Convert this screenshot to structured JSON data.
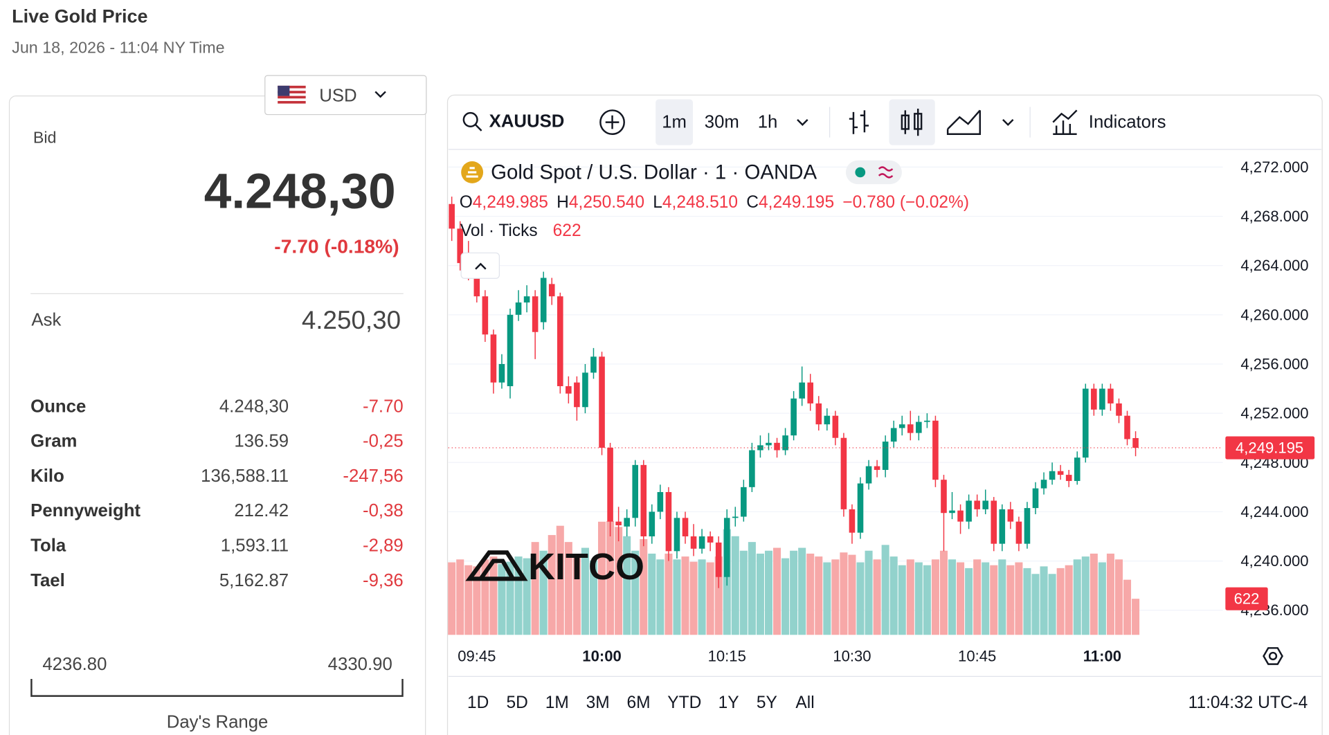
{
  "header": {
    "title": "Live Gold Price",
    "date": "Jun 18, 2026 - 11:04 NY Time"
  },
  "quote": {
    "currency": "USD",
    "bid_label": "Bid",
    "bid": "4.248,30",
    "change": "-7.70 (-0.18%)",
    "ask_label": "Ask",
    "ask": "4.250,30",
    "rows": [
      [
        "Ounce",
        "4.248,30",
        "-7.70"
      ],
      [
        "Gram",
        "136.59",
        "-0,25"
      ],
      [
        "Kilo",
        "136,588.11",
        "-247,56"
      ],
      [
        "Pennyweight",
        "212.42",
        "-0,38"
      ],
      [
        "Tola",
        "1,593.11",
        "-2,89"
      ],
      [
        "Tael",
        "5,162.87",
        "-9,36"
      ]
    ],
    "range_low": "4236.80",
    "range_high": "4330.90",
    "range_label": "Day's Range"
  },
  "toolbar": {
    "symbol": "XAUUSD",
    "intervals": [
      "1m",
      "30m",
      "1h"
    ],
    "indicators": "Indicators"
  },
  "chart_data": {
    "type": "candlestick",
    "title": "Gold Spot / U.S. Dollar · 1 · OANDA",
    "legend": [
      {
        "key": "O",
        "value": "4,249.985"
      },
      {
        "key": "H",
        "value": "4,250.540"
      },
      {
        "key": "L",
        "value": "4,248.510"
      },
      {
        "key": "C",
        "value": "4,249.195"
      }
    ],
    "legend_change": "−0.780 (−0.02%)",
    "volume_label": "Vol · Ticks",
    "watermark": "KITCO",
    "categories": [
      null,
      null,
      null,
      "09:45",
      null,
      null,
      null,
      null,
      null,
      null,
      null,
      null,
      null,
      null,
      null,
      null,
      null,
      null,
      "10:00",
      null,
      null,
      null,
      null,
      null,
      null,
      null,
      null,
      null,
      null,
      null,
      null,
      null,
      null,
      "10:15",
      null,
      null,
      null,
      null,
      null,
      null,
      null,
      null,
      null,
      null,
      null,
      null,
      null,
      null,
      "10:30",
      null,
      null,
      null,
      null,
      null,
      null,
      null,
      null,
      null,
      null,
      null,
      null,
      null,
      null,
      "10:45",
      null,
      null,
      null,
      null,
      null,
      null,
      null,
      null,
      null,
      null,
      null,
      null,
      null,
      null,
      "11:00",
      null,
      null,
      null,
      null
    ],
    "open": [
      4269.0,
      4267.0,
      4264.2,
      4263.5,
      4261.5,
      4258.4,
      4254.5,
      4254.2,
      4260.0,
      4261.0,
      4261.5,
      4259.4,
      4262.5,
      4261.5,
      4254.2,
      4254.5,
      4252.5,
      4255.3,
      4256.6,
      4249.2,
      4243.2,
      4242.8,
      4243.5,
      4247.8,
      4242.0,
      4244.0,
      4245.6,
      4240.8,
      4243.5,
      4242.0,
      4241.0,
      4242.0,
      4241.5,
      4238.7,
      4243.5,
      4243.6,
      4246.0,
      4249.0,
      4249.4,
      4249.6,
      4249.0,
      4250.2,
      4253.2,
      4254.5,
      4252.8,
      4251.1,
      4251.8,
      4250.0,
      4244.2,
      4242.3,
      4246.3,
      4247.7,
      4247.4,
      4249.7,
      4250.8,
      4251.1,
      4250.4,
      4251.3,
      4251.4,
      4246.6,
      4243.9,
      4244.1,
      4243.2,
      4244.9,
      4244.2,
      4244.9,
      4241.4,
      4244.2,
      4243.2,
      4241.4,
      4244.3,
      4245.9,
      4246.6,
      4247.3,
      4247.0,
      4246.5,
      4248.4,
      4254.0,
      4252.3,
      4254.0,
      4252.8,
      4251.8,
      4249.985
    ],
    "high": [
      4269.6,
      4267.6,
      4266.0,
      4264.0,
      4262.0,
      4258.8,
      4256.8,
      4260.5,
      4262.0,
      4262.4,
      4262.0,
      4263.5,
      4263.0,
      4261.8,
      4255.0,
      4255.0,
      4256.0,
      4257.3,
      4257.0,
      4249.6,
      4244.4,
      4244.2,
      4248.2,
      4248.2,
      4244.6,
      4246.2,
      4246.0,
      4244.0,
      4244.0,
      4243.0,
      4242.6,
      4242.4,
      4242.0,
      4244.2,
      4244.4,
      4246.6,
      4249.6,
      4250.2,
      4250.4,
      4250.0,
      4250.8,
      4253.8,
      4255.8,
      4255.2,
      4253.4,
      4252.4,
      4252.2,
      4250.4,
      4244.6,
      4246.8,
      4248.2,
      4248.2,
      4250.2,
      4251.4,
      4251.8,
      4252.2,
      4251.8,
      4252.0,
      4251.8,
      4247.0,
      4245.6,
      4244.6,
      4245.4,
      4245.4,
      4245.8,
      4245.2,
      4244.6,
      4244.8,
      4243.6,
      4244.8,
      4246.4,
      4247.2,
      4248.0,
      4247.8,
      4247.4,
      4248.9,
      4254.4,
      4254.4,
      4254.4,
      4254.4,
      4253.2,
      4252.2,
      4250.54
    ],
    "low": [
      4266.0,
      4263.6,
      4262.8,
      4261.0,
      4257.8,
      4253.6,
      4254.0,
      4253.2,
      4259.5,
      4260.2,
      4256.4,
      4258.8,
      4260.8,
      4253.6,
      4252.8,
      4251.4,
      4252.0,
      4254.8,
      4248.6,
      4242.0,
      4241.6,
      4242.0,
      4242.8,
      4241.2,
      4241.4,
      4243.4,
      4240.0,
      4240.2,
      4241.4,
      4240.4,
      4240.6,
      4240.8,
      4237.8,
      4238.0,
      4242.8,
      4243.2,
      4245.6,
      4248.4,
      4249.0,
      4248.4,
      4248.6,
      4249.8,
      4252.6,
      4252.2,
      4250.6,
      4250.6,
      4249.4,
      4243.6,
      4241.4,
      4241.8,
      4245.8,
      4246.8,
      4246.8,
      4249.2,
      4250.2,
      4249.8,
      4249.8,
      4250.8,
      4246.0,
      4240.8,
      4243.4,
      4242.2,
      4242.6,
      4243.6,
      4243.8,
      4240.8,
      4240.8,
      4242.6,
      4240.8,
      4241.0,
      4243.8,
      4245.4,
      4246.2,
      4246.6,
      4246.0,
      4246.2,
      4248.0,
      4251.8,
      4251.8,
      4252.2,
      4251.2,
      4249.4,
      4248.51
    ],
    "close": [
      4267.0,
      4264.2,
      4263.5,
      4261.5,
      4258.4,
      4254.5,
      4256.0,
      4260.0,
      4261.0,
      4261.5,
      4258.6,
      4263.0,
      4261.5,
      4254.2,
      4253.6,
      4252.5,
      4255.3,
      4256.6,
      4249.2,
      4243.2,
      4242.9,
      4243.5,
      4247.8,
      4242.0,
      4244.0,
      4245.6,
      4240.8,
      4243.5,
      4242.0,
      4241.0,
      4242.0,
      4241.5,
      4238.7,
      4243.5,
      4243.6,
      4246.0,
      4249.0,
      4249.4,
      4249.6,
      4249.0,
      4250.2,
      4253.2,
      4254.5,
      4252.8,
      4251.1,
      4251.8,
      4250.0,
      4244.2,
      4242.3,
      4246.3,
      4247.7,
      4247.4,
      4249.7,
      4250.8,
      4251.1,
      4250.4,
      4251.3,
      4251.4,
      4246.6,
      4243.9,
      4244.1,
      4243.2,
      4244.9,
      4244.2,
      4244.9,
      4241.4,
      4244.2,
      4243.2,
      4241.4,
      4244.3,
      4245.9,
      4246.6,
      4247.3,
      4247.0,
      4246.5,
      4248.4,
      4254.0,
      4252.3,
      4254.0,
      4252.8,
      4251.8,
      4249.9,
      4249.195
    ],
    "volume": [
      1250,
      1300,
      1200,
      1180,
      1300,
      1350,
      1220,
      1260,
      1350,
      1320,
      1600,
      1450,
      1720,
      1880,
      1600,
      1380,
      1500,
      1280,
      1950,
      1960,
      1860,
      1700,
      1450,
      1650,
      1400,
      1300,
      1400,
      1300,
      1350,
      1260,
      1300,
      1250,
      1350,
      1820,
      1700,
      1450,
      1600,
      1400,
      1450,
      1500,
      1320,
      1450,
      1500,
      1400,
      1350,
      1250,
      1300,
      1420,
      1380,
      1250,
      1450,
      1300,
      1550,
      1350,
      1200,
      1300,
      1250,
      1200,
      1300,
      1450,
      1300,
      1250,
      1150,
      1300,
      1250,
      1200,
      1300,
      1200,
      1250,
      1150,
      1050,
      1180,
      1050,
      1150,
      1200,
      1300,
      1350,
      1400,
      1250,
      1400,
      1300,
      950,
      622
    ],
    "up_color": "#089981",
    "down_color": "#f23645",
    "volume_up_color": "#92d2cc",
    "volume_down_color": "#f7a8a8",
    "ylim": [
      4234.0,
      4273.3
    ],
    "yticks": [
      {
        "value": 4272,
        "label": "4,272.000"
      },
      {
        "value": 4268,
        "label": "4,268.000"
      },
      {
        "value": 4264,
        "label": "4,264.000"
      },
      {
        "value": 4260,
        "label": "4,260.000"
      },
      {
        "value": 4256,
        "label": "4,256.000"
      },
      {
        "value": 4252,
        "label": "4,252.000"
      },
      {
        "value": 4248,
        "label": "4,248.000"
      },
      {
        "value": 4244,
        "label": "4,244.000"
      },
      {
        "value": 4240,
        "label": "4,240.000"
      },
      {
        "value": 4236,
        "label": "4,236.000"
      }
    ],
    "grid": true,
    "last_price_label": "4,249.195"
  },
  "footer": {
    "ranges": [
      "1D",
      "5D",
      "1M",
      "3M",
      "6M",
      "YTD",
      "1Y",
      "5Y",
      "All"
    ],
    "clock": "11:04:32 UTC-4"
  }
}
